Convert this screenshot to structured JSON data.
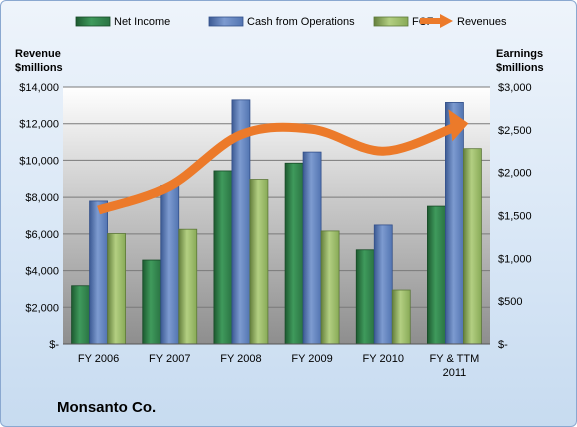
{
  "company_label": "Monsanto Co.",
  "colors": {
    "net_income": "#2e7d46",
    "cash_from_operations": "#5a7cb8",
    "fcf": "#8db35a",
    "revenues": "#ec7a2a"
  },
  "chart_data": {
    "type": "bar",
    "categories": [
      "FY 2006",
      "FY 2007",
      "FY 2008",
      "FY 2009",
      "FY 2010",
      "FY & TTM 2011"
    ],
    "left_axis": {
      "label_line1": "Revenue",
      "label_line2": "$millions",
      "ylim": [
        0,
        14000
      ],
      "ticks": [
        0,
        2000,
        4000,
        6000,
        8000,
        10000,
        12000,
        14000
      ],
      "tick_labels": [
        "$-",
        "$2,000",
        "$4,000",
        "$6,000",
        "$8,000",
        "$10,000",
        "$12,000",
        "$14,000"
      ]
    },
    "right_axis": {
      "label_line1": "Earnings",
      "label_line2": "$millions",
      "ylim": [
        0,
        3000
      ],
      "ticks": [
        0,
        500,
        1000,
        1500,
        2000,
        2500,
        3000
      ],
      "tick_labels": [
        "$-",
        "$500",
        "$1,000",
        "$1,500",
        "$2,000",
        "$2,500",
        "$3,000"
      ]
    },
    "series": [
      {
        "name": "Net Income",
        "axis": "right",
        "kind": "bar",
        "values": [
          680,
          980,
          2020,
          2110,
          1100,
          1610
        ]
      },
      {
        "name": "Cash from Operations",
        "axis": "right",
        "kind": "bar",
        "values": [
          1670,
          1850,
          2850,
          2240,
          1390,
          2820
        ]
      },
      {
        "name": "FCF",
        "axis": "right",
        "kind": "bar",
        "values": [
          1290,
          1340,
          1920,
          1320,
          630,
          2280
        ]
      },
      {
        "name": "Revenues",
        "axis": "left",
        "kind": "line",
        "values": [
          7300,
          8600,
          11400,
          11700,
          10500,
          11800
        ]
      }
    ],
    "legend_position": "top",
    "grid": true
  }
}
